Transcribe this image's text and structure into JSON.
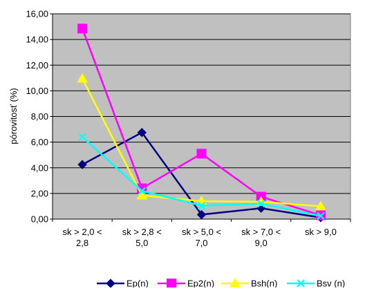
{
  "chart_data": {
    "type": "line",
    "title": "",
    "ylabel": "pórovitosť (%)",
    "xlabel": "",
    "categories": [
      [
        "sk > 2,0 <",
        "2,8"
      ],
      [
        "sk > 2,8 <",
        "5,0"
      ],
      [
        "sk > 5,0 <",
        "7,0"
      ],
      [
        "sk > 7,0 <",
        "9,0"
      ],
      [
        "sk > 9,0"
      ]
    ],
    "ylim": [
      0,
      16
    ],
    "ytick_step": 2,
    "ytick_labels": [
      "0,00",
      "2,00",
      "4,00",
      "6,00",
      "8,00",
      "10,00",
      "12,00",
      "14,00",
      "16,00"
    ],
    "grid": true,
    "plot_background": "#c0c0c0",
    "legend_position": "bottom",
    "series": [
      {
        "name": "Ep(n)",
        "color": "#000080",
        "marker": "diamond",
        "values": [
          4.25,
          6.75,
          0.35,
          0.85,
          0.12
        ]
      },
      {
        "name": "Ep2(n)",
        "color": "#ff00ff",
        "marker": "square",
        "values": [
          14.85,
          2.4,
          5.1,
          1.75,
          0.3
        ]
      },
      {
        "name": "Bsh(n)",
        "color": "#ffff00",
        "marker": "triangle",
        "values": [
          10.95,
          1.85,
          1.4,
          1.35,
          1.0
        ]
      },
      {
        "name": "Bsv (n)",
        "color": "#00ffff",
        "marker": "x",
        "values": [
          6.4,
          2.2,
          1.05,
          1.2,
          0.25
        ]
      }
    ]
  }
}
